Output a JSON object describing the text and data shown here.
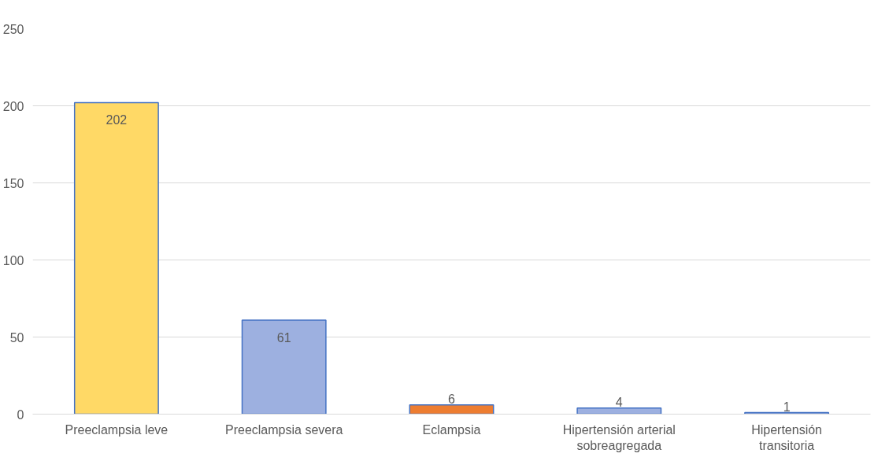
{
  "chart_data": {
    "type": "bar",
    "categories": [
      "Preeclampsia leve",
      "Preeclampsia severa",
      "Eclampsia",
      "Hipertensión arterial sobreagregada",
      "Hipertensión transitoria"
    ],
    "values": [
      202,
      61,
      6,
      4,
      1
    ],
    "colors": [
      "#ffd966",
      "#9db0e0",
      "#ed7d31",
      "#9db0e0",
      "#9db0e0"
    ],
    "ylim": [
      0,
      250
    ],
    "yticks": [
      0,
      50,
      100,
      150,
      200,
      250
    ],
    "grid": "y",
    "data_labels": true
  }
}
